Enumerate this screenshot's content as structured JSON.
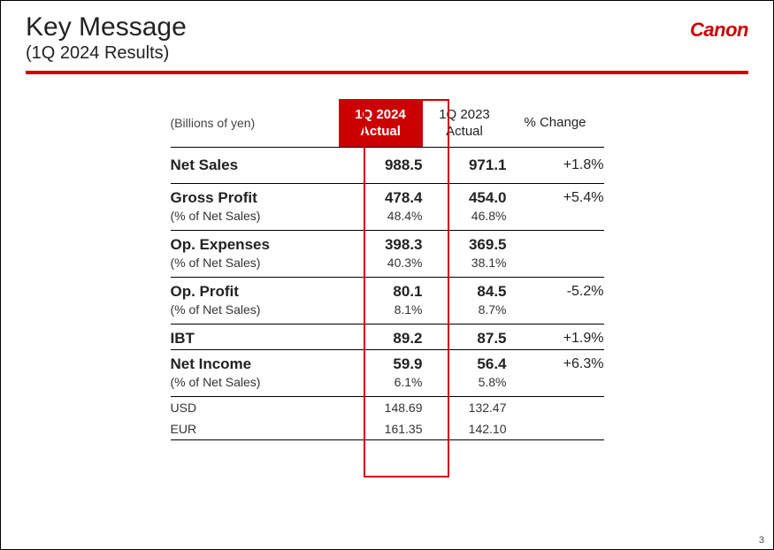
{
  "header": {
    "title": "Key Message",
    "subtitle": "(1Q 2024 Results)",
    "logo": "Canon"
  },
  "colors": {
    "brand_red": "#cc0000",
    "text": "#222222",
    "background": "#ffffff",
    "border": "#000000"
  },
  "table": {
    "type": "table",
    "unit": "(Billions of yen)",
    "columns": [
      {
        "line1": "1Q 2024",
        "line2": "Actual",
        "highlight": true,
        "bg": "#cc0000",
        "fg": "#ffffff"
      },
      {
        "line1": "1Q 2023",
        "line2": "Actual"
      },
      {
        "line1": "% Change"
      }
    ],
    "rows": {
      "net_sales": {
        "label": "Net Sales",
        "v2024": "988.5",
        "v2023": "971.1",
        "change": "+1.8%"
      },
      "gross_profit": {
        "label": "Gross Profit",
        "sublabel": "(% of Net Sales)",
        "v2024": "478.4",
        "v2023": "454.0",
        "change": "+5.4%",
        "p2024": "48.4%",
        "p2023": "46.8%"
      },
      "op_expenses": {
        "label": "Op. Expenses",
        "sublabel": "(% of Net Sales)",
        "v2024": "398.3",
        "v2023": "369.5",
        "change": "",
        "p2024": "40.3%",
        "p2023": "38.1%"
      },
      "op_profit": {
        "label": "Op. Profit",
        "sublabel": "(% of Net Sales)",
        "v2024": "80.1",
        "v2023": "84.5",
        "change": "-5.2%",
        "p2024": "8.1%",
        "p2023": "8.7%"
      },
      "ibt": {
        "label": "IBT",
        "v2024": "89.2",
        "v2023": "87.5",
        "change": "+1.9%"
      },
      "net_income": {
        "label": "Net Income",
        "sublabel": "(% of Net Sales)",
        "v2024": "59.9",
        "v2023": "56.4",
        "change": "+6.3%",
        "p2024": "6.1%",
        "p2023": "5.8%"
      },
      "usd": {
        "label": "USD",
        "v2024": "148.69",
        "v2023": "132.47"
      },
      "eur": {
        "label": "EUR",
        "v2024": "161.35",
        "v2023": "142.10"
      }
    },
    "highlight_box": {
      "column_index": 1,
      "border_color": "#cc0000",
      "border_width": 2.5
    }
  },
  "page_number": "3"
}
